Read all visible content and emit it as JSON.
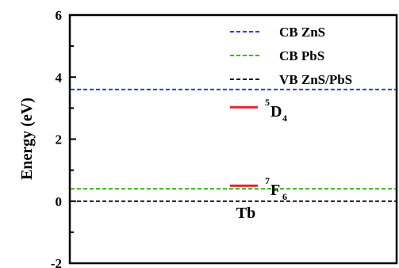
{
  "chart_data": {
    "type": "energy-level-diagram",
    "title": "",
    "xlabel": "Tb",
    "ylabel": "Energy (eV)",
    "ylim": [
      -2,
      6
    ],
    "yticks": [
      "-2",
      "0",
      "2",
      "4",
      "6"
    ],
    "grid": false,
    "legend_position": "top-right",
    "series": [
      {
        "name": "CB ZnS",
        "type": "hline",
        "y": 3.6,
        "style": "dashed",
        "color": "#2b3fd6"
      },
      {
        "name": "CB PbS",
        "type": "hline",
        "y": 0.4,
        "style": "dashed",
        "color": "#37b51f"
      },
      {
        "name": "VB ZnS/PbS",
        "type": "hline",
        "y": 0.0,
        "style": "dashed",
        "color": "#111111"
      }
    ],
    "levels": [
      {
        "base": "D",
        "sup": "5",
        "sub": "4",
        "y": 3.03,
        "color": "#e3262b"
      },
      {
        "base": "F",
        "sup": "7",
        "sub": "6",
        "y": 0.5,
        "color": "#e3262b"
      }
    ]
  }
}
